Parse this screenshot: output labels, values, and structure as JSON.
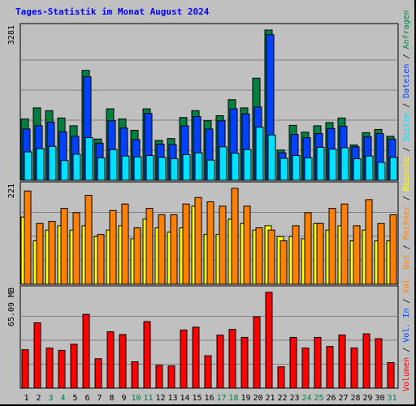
{
  "title": "Tages-Statistik im Monat August 2024",
  "colors": {
    "background": "#c0c0c0",
    "title": "#0000ff",
    "anfragen": "#008040",
    "dateien": "#0040ff",
    "seiten": "#00e0ff",
    "besuche": "#ff8000",
    "rechner": "#ffff00",
    "vol_in": "#0040ff",
    "vol_out": "#ff8000",
    "volumen": "#ff0000",
    "weekend_labels": "#008040",
    "separator": "#000000"
  },
  "chart_data": [
    {
      "type": "bar",
      "name": "top-panel",
      "scale_label": "3281",
      "ylim": [
        0,
        3281
      ],
      "categories": [
        "1",
        "2",
        "3",
        "4",
        "5",
        "6",
        "7",
        "8",
        "9",
        "10",
        "11",
        "12",
        "13",
        "14",
        "15",
        "16",
        "17",
        "18",
        "19",
        "20",
        "21",
        "22",
        "23",
        "24",
        "25",
        "26",
        "27",
        "28",
        "29",
        "30",
        "31"
      ],
      "series": [
        {
          "name": "Anfragen",
          "values": [
            1340,
            1580,
            1520,
            1360,
            1190,
            2400,
            900,
            1560,
            1340,
            1090,
            1560,
            870,
            910,
            1370,
            1520,
            1300,
            1410,
            1760,
            1580,
            2230,
            3281,
            660,
            1200,
            1050,
            1190,
            1260,
            1360,
            770,
            1040,
            1110,
            960
          ]
        },
        {
          "name": "Dateien",
          "values": [
            1120,
            1190,
            1270,
            1060,
            960,
            2260,
            810,
            1300,
            1140,
            890,
            1460,
            790,
            780,
            1190,
            1390,
            1120,
            1300,
            1560,
            1450,
            1600,
            3180,
            600,
            1000,
            930,
            1020,
            1130,
            1180,
            730,
            950,
            1020,
            900
          ]
        },
        {
          "name": "Seiten",
          "values": [
            620,
            690,
            740,
            430,
            570,
            930,
            490,
            670,
            530,
            510,
            540,
            500,
            470,
            560,
            600,
            440,
            730,
            590,
            670,
            1160,
            990,
            480,
            540,
            490,
            720,
            680,
            710,
            470,
            530,
            390,
            500
          ]
        }
      ]
    },
    {
      "type": "bar",
      "name": "middle-panel",
      "scale_label": "221",
      "ylim": [
        0,
        221
      ],
      "series": [
        {
          "name": "Besuche",
          "values": [
            215,
            140,
            145,
            175,
            165,
            205,
            115,
            170,
            185,
            130,
            175,
            160,
            160,
            185,
            200,
            190,
            180,
            221,
            180,
            130,
            125,
            100,
            135,
            165,
            140,
            175,
            185,
            135,
            195,
            140,
            160
          ]
        },
        {
          "name": "Rechner",
          "values": [
            155,
            100,
            125,
            135,
            125,
            135,
            110,
            125,
            135,
            105,
            150,
            130,
            120,
            130,
            180,
            115,
            115,
            150,
            140,
            125,
            135,
            110,
            110,
            105,
            140,
            125,
            135,
            100,
            125,
            100,
            100
          ]
        }
      ]
    },
    {
      "type": "bar",
      "name": "bottom-panel",
      "scale_label": "65.09 MB",
      "ylim": [
        0,
        65.09
      ],
      "series": [
        {
          "name": "Volumen",
          "values": [
            26.1,
            44.4,
            27.2,
            25.7,
            29.8,
            50.1,
            20.0,
            38.3,
            36.4,
            17.9,
            45.2,
            15.5,
            15.1,
            39.5,
            41.4,
            22.0,
            36.0,
            39.9,
            34.5,
            48.5,
            65.09,
            14.5,
            34.5,
            27.2,
            34.5,
            28.3,
            36.1,
            27.3,
            36.9,
            33.6,
            17.4
          ]
        }
      ]
    }
  ],
  "x_labels": [
    "1",
    "2",
    "3",
    "4",
    "5",
    "6",
    "7",
    "8",
    "9",
    "10",
    "11",
    "12",
    "13",
    "14",
    "15",
    "16",
    "17",
    "18",
    "19",
    "20",
    "21",
    "22",
    "23",
    "24",
    "25",
    "26",
    "27",
    "28",
    "29",
    "30",
    "31"
  ],
  "weekend_days": [
    "3",
    "4",
    "10",
    "11",
    "17",
    "18",
    "24",
    "25",
    "31"
  ],
  "right_legend": [
    {
      "text": "Volumen",
      "color_key": "volumen"
    },
    {
      "text": "Vol. In",
      "color_key": "vol_in"
    },
    {
      "text": "Vol. Out",
      "color_key": "vol_out"
    },
    {
      "text": "Rechner",
      "color_key": "vol_out"
    },
    {
      "text": "Besuche",
      "color_key": "rechner"
    },
    {
      "text": "Seiten",
      "color_key": "seiten"
    },
    {
      "text": "Dateien",
      "color_key": "dateien"
    },
    {
      "text": "Anfragen",
      "color_key": "anfragen"
    }
  ]
}
